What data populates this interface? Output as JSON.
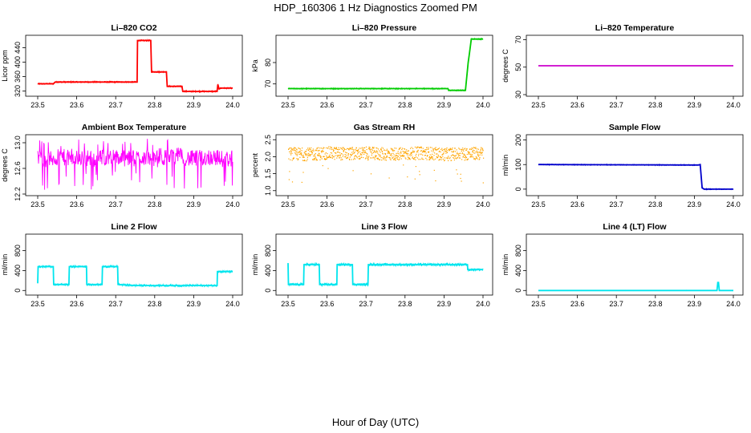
{
  "figure": {
    "title": "HDP_160306  1 Hz Diagnostics Zoomed PM",
    "xlabel": "Hour of Day (UTC)"
  },
  "chart_data": [
    {
      "type": "line",
      "title": "Li–820 CO2",
      "ylabel": "Licor ppm",
      "color": "#ff0000",
      "xlim": [
        23.5,
        24.0
      ],
      "ylim": [
        310,
        470
      ],
      "xticks": [
        "23.5",
        "23.6",
        "23.7",
        "23.8",
        "23.9",
        "24.0"
      ],
      "yticks": [
        320,
        360,
        400,
        440
      ],
      "series": [
        {
          "x": [
            23.5,
            23.54,
            23.545,
            23.755,
            23.756,
            23.79,
            23.792,
            23.83,
            23.832,
            23.87,
            23.872,
            23.96,
            23.962,
            23.965,
            23.97,
            24.0
          ],
          "values": [
            340,
            340,
            345,
            345,
            460,
            460,
            373,
            373,
            333,
            333,
            319,
            319,
            338,
            326,
            328,
            328
          ]
        }
      ]
    },
    {
      "type": "line",
      "title": "Li–820 Pressure",
      "ylabel": "kPa",
      "color": "#00cc00",
      "xlim": [
        23.5,
        24.0
      ],
      "ylim": [
        65,
        92
      ],
      "xticks": [
        "23.5",
        "23.6",
        "23.7",
        "23.8",
        "23.9",
        "24.0"
      ],
      "yticks": [
        70,
        80
      ],
      "series": [
        {
          "x": [
            23.5,
            23.91,
            23.912,
            23.955,
            23.962,
            23.965,
            23.97,
            24.0
          ],
          "values": [
            67.8,
            67.8,
            67,
            67,
            80,
            84,
            91,
            91
          ]
        }
      ]
    },
    {
      "type": "line",
      "title": "Li–820 Temperature",
      "ylabel": "degrees C",
      "color": "#cc00cc",
      "xlim": [
        23.5,
        24.0
      ],
      "ylim": [
        30,
        72
      ],
      "xticks": [
        "23.5",
        "23.6",
        "23.7",
        "23.8",
        "23.9",
        "24.0"
      ],
      "yticks": [
        30,
        50,
        70
      ],
      "series": [
        {
          "x": [
            23.5,
            24.0
          ],
          "values": [
            51,
            51
          ]
        }
      ]
    },
    {
      "type": "line",
      "title": "Ambient Box Temperature",
      "ylabel": "degrees C",
      "color": "#ff00ff",
      "xlim": [
        23.5,
        24.0
      ],
      "ylim": [
        12.2,
        13.1
      ],
      "xticks": [
        "23.5",
        "23.6",
        "23.7",
        "23.8",
        "23.9",
        "24.0"
      ],
      "yticks": [
        12.2,
        12.6,
        13.0
      ],
      "series": [
        {
          "x": [
            23.5,
            23.53,
            23.56,
            23.59,
            23.62,
            23.65,
            23.68,
            23.71,
            23.74,
            23.77,
            23.8,
            23.83,
            23.86,
            23.89,
            23.92,
            23.95,
            23.98,
            24.0
          ],
          "values": [
            12.76,
            12.74,
            12.78,
            12.75,
            12.77,
            12.74,
            12.79,
            12.76,
            12.75,
            12.78,
            12.74,
            12.77,
            12.8,
            12.75,
            12.76,
            12.78,
            12.74,
            12.76
          ]
        }
      ]
    },
    {
      "type": "scatter",
      "title": "Gas Stream RH",
      "ylabel": "percent",
      "color": "#ffa500",
      "xlim": [
        23.5,
        24.0
      ],
      "ylim": [
        0.9,
        2.6
      ],
      "xticks": [
        "23.5",
        "23.6",
        "23.7",
        "23.8",
        "23.9",
        "24.0"
      ],
      "yticks": [
        1.0,
        1.5,
        2.0,
        2.5
      ],
      "series": [
        {
          "x": [
            23.5,
            23.55,
            23.6,
            23.65,
            23.7,
            23.75,
            23.8,
            23.85,
            23.9,
            23.95,
            24.0
          ],
          "values": [
            2.1,
            2.08,
            2.12,
            2.1,
            2.11,
            2.09,
            2.1,
            2.12,
            2.08,
            2.1,
            2.11
          ]
        }
      ]
    },
    {
      "type": "line",
      "title": "Sample Flow",
      "ylabel": "ml/min",
      "color": "#0000cc",
      "xlim": [
        23.5,
        24.0
      ],
      "ylim": [
        -20,
        215
      ],
      "xticks": [
        "23.5",
        "23.6",
        "23.7",
        "23.8",
        "23.9",
        "24.0"
      ],
      "yticks": [
        0,
        100,
        200
      ],
      "series": [
        {
          "x": [
            23.5,
            23.91,
            23.915,
            23.92,
            23.925,
            24.0
          ],
          "values": [
            100,
            98,
            100,
            5,
            0,
            0
          ]
        }
      ]
    },
    {
      "type": "line",
      "title": "Line 2 Flow",
      "ylabel": "ml/min",
      "color": "#00e5ee",
      "xlim": [
        23.5,
        24.0
      ],
      "ylim": [
        -60,
        1100
      ],
      "xticks": [
        "23.5",
        "23.6",
        "23.7",
        "23.8",
        "23.9",
        "24.0"
      ],
      "yticks": [
        0,
        400,
        800
      ],
      "series": [
        {
          "x": [
            23.5,
            23.501,
            23.54,
            23.541,
            23.58,
            23.581,
            23.625,
            23.626,
            23.665,
            23.666,
            23.705,
            23.706,
            23.75,
            23.96,
            23.961,
            24.0
          ],
          "values": [
            150,
            480,
            480,
            120,
            120,
            480,
            480,
            120,
            120,
            480,
            480,
            120,
            100,
            100,
            380,
            380
          ]
        }
      ]
    },
    {
      "type": "line",
      "title": "Line 3 Flow",
      "ylabel": "ml/min",
      "color": "#00e5ee",
      "xlim": [
        23.5,
        24.0
      ],
      "ylim": [
        -60,
        1100
      ],
      "xticks": [
        "23.5",
        "23.6",
        "23.7",
        "23.8",
        "23.9",
        "24.0"
      ],
      "yticks": [
        0,
        400,
        800
      ],
      "series": [
        {
          "x": [
            23.5,
            23.501,
            23.502,
            23.54,
            23.541,
            23.58,
            23.581,
            23.625,
            23.626,
            23.665,
            23.666,
            23.705,
            23.706,
            23.96,
            23.961,
            24.0
          ],
          "values": [
            550,
            120,
            120,
            120,
            520,
            520,
            120,
            120,
            520,
            520,
            120,
            120,
            520,
            520,
            420,
            420
          ]
        }
      ]
    },
    {
      "type": "line",
      "title": "Line 4 (LT) Flow",
      "ylabel": "ml/min",
      "color": "#00e5ee",
      "xlim": [
        23.5,
        24.0
      ],
      "ylim": [
        -60,
        1100
      ],
      "xticks": [
        "23.5",
        "23.6",
        "23.7",
        "23.8",
        "23.9",
        "24.0"
      ],
      "yticks": [
        0,
        400,
        800
      ],
      "series": [
        {
          "x": [
            23.5,
            23.958,
            23.96,
            23.962,
            23.964,
            24.0
          ],
          "values": [
            0,
            0,
            160,
            160,
            0,
            0
          ]
        }
      ]
    }
  ]
}
